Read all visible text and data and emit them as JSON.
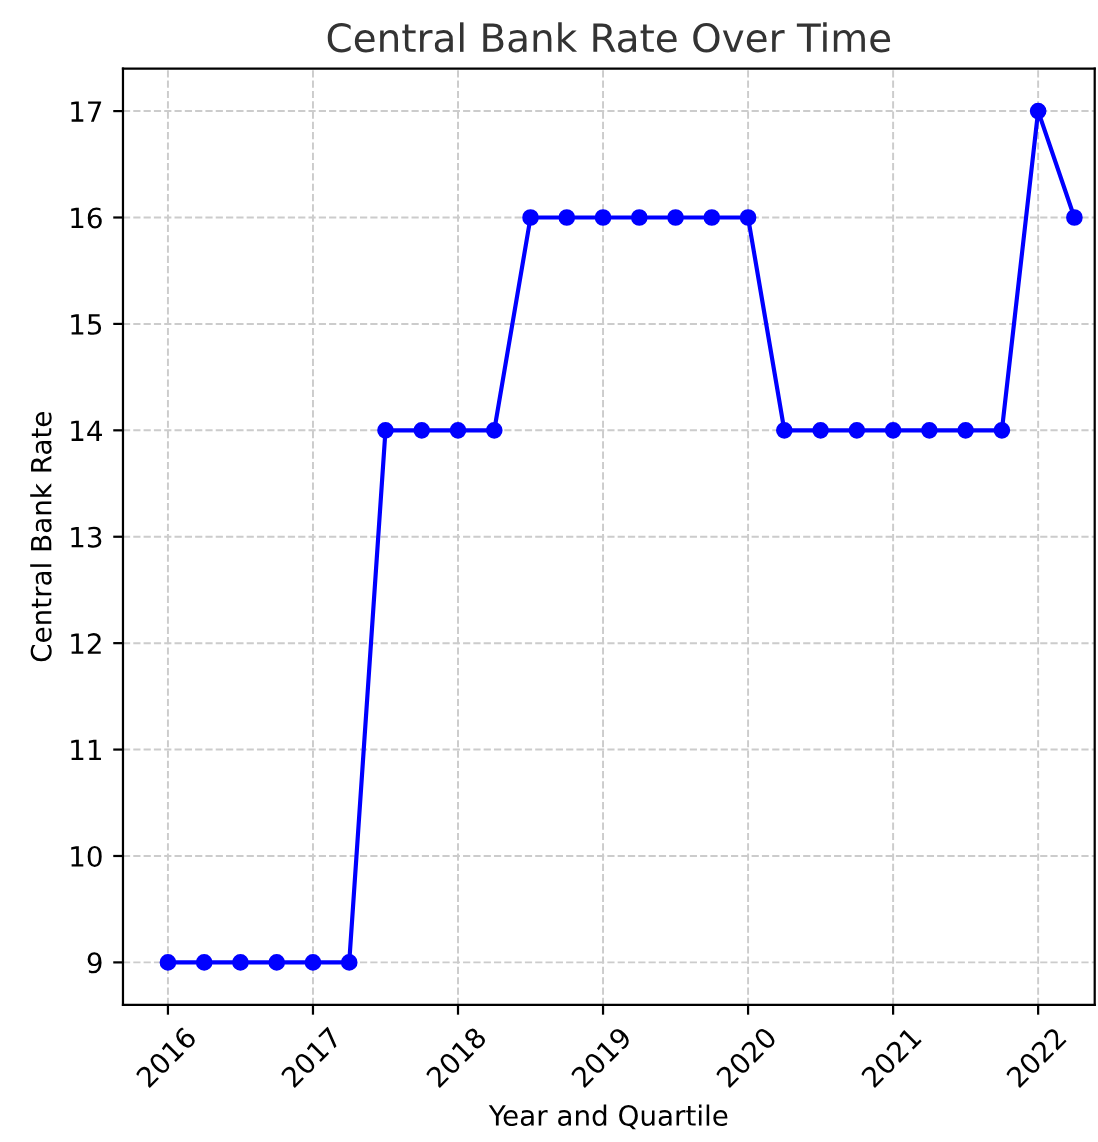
{
  "chart_data": {
    "type": "line",
    "title": "Central Bank Rate Over Time",
    "xlabel": "Year and Quartile",
    "ylabel": "Central Bank Rate",
    "x": [
      2016,
      2016.25,
      2016.5,
      2016.75,
      2017,
      2017.25,
      2017.5,
      2017.75,
      2018,
      2018.25,
      2018.5,
      2018.75,
      2019,
      2019.25,
      2019.5,
      2019.75,
      2020,
      2020.25,
      2020.5,
      2020.75,
      2021,
      2021.25,
      2021.5,
      2021.75,
      2022,
      2022.25
    ],
    "series": [
      {
        "color": "#0000ff",
        "values": [
          9,
          9,
          9,
          9,
          9,
          9,
          14,
          14,
          14,
          14,
          16,
          16,
          16,
          16,
          16,
          16,
          16,
          14,
          14,
          14,
          14,
          14,
          14,
          14,
          17,
          16
        ]
      }
    ],
    "xlim": [
      2015.69,
      2022.39
    ],
    "xticks": [
      2016,
      2017,
      2018,
      2019,
      2020,
      2021,
      2022
    ],
    "ylim": [
      8.6,
      17.4
    ],
    "yticks": [
      9,
      10,
      11,
      12,
      13,
      14,
      15,
      16,
      17
    ],
    "grid": true,
    "marker": "circle",
    "line_style": "solid"
  }
}
